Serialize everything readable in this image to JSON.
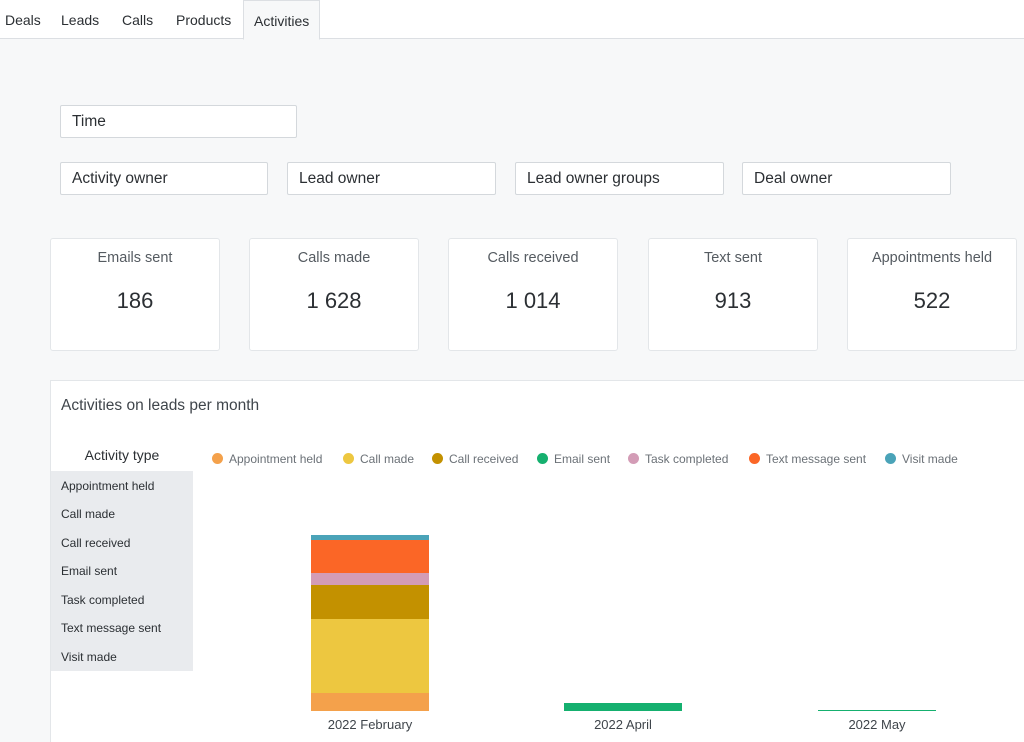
{
  "tabs": [
    {
      "label": "Deals"
    },
    {
      "label": "Leads"
    },
    {
      "label": "Calls"
    },
    {
      "label": "Products"
    },
    {
      "label": "Activities",
      "active": true
    }
  ],
  "filters": {
    "time": "Time",
    "activity_owner": "Activity owner",
    "lead_owner": "Lead owner",
    "lead_owner_groups": "Lead owner groups",
    "deal_owner": "Deal owner"
  },
  "kpis": [
    {
      "label": "Emails sent",
      "value": "186"
    },
    {
      "label": "Calls made",
      "value": "1 628"
    },
    {
      "label": "Calls received",
      "value": "1 014"
    },
    {
      "label": "Text sent",
      "value": "913"
    },
    {
      "label": "Appointments held",
      "value": "522"
    }
  ],
  "panel": {
    "title": "Activities on leads per month",
    "activity_type_header": "Activity type",
    "activity_types": [
      "Appointment held",
      "Call made",
      "Call received",
      "Email sent",
      "Task completed",
      "Text message sent",
      "Visit made"
    ]
  },
  "chart_data": {
    "type": "bar",
    "stacked": true,
    "categories": [
      "2022 February",
      "2022 April",
      "2022 May"
    ],
    "series": [
      {
        "name": "Appointment held",
        "color": "#f4a14b",
        "values": [
          18,
          0,
          0
        ]
      },
      {
        "name": "Call made",
        "color": "#edc740",
        "values": [
          74,
          0,
          0
        ]
      },
      {
        "name": "Call received",
        "color": "#c39100",
        "values": [
          34,
          0,
          0
        ]
      },
      {
        "name": "Email sent",
        "color": "#15b06f",
        "values": [
          0,
          8,
          0.5
        ]
      },
      {
        "name": "Task completed",
        "color": "#d39cb6",
        "values": [
          12,
          0,
          0
        ]
      },
      {
        "name": "Text message sent",
        "color": "#fb6626",
        "values": [
          33,
          0,
          0
        ]
      },
      {
        "name": "Visit made",
        "color": "#4aa3b8",
        "values": [
          5,
          0,
          0
        ]
      }
    ],
    "title": "Activities on leads per month",
    "xlabel": "",
    "ylabel": "",
    "ylim": [
      0,
      176
    ],
    "grid": false,
    "legend_placement": "top"
  }
}
